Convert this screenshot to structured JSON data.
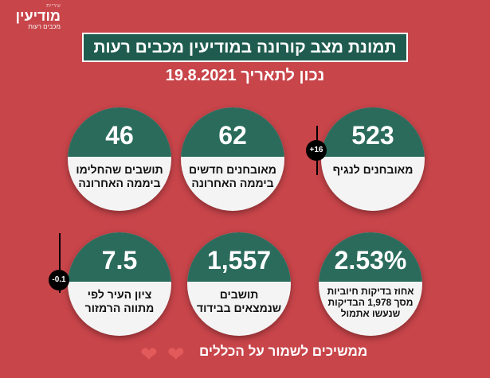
{
  "logo": {
    "small": "עיריית",
    "big": "מודיעין",
    "sub": "מכבים רעות"
  },
  "title": "תמונת מצב קורונה במודיעין מכבים רעות",
  "date": "נכון לתאריך 19.8.2021",
  "cards": [
    {
      "value": "46",
      "label": "תושבים שהחלימו ביממה האחרונה"
    },
    {
      "value": "62",
      "label": "מאובחנים חדשים ביממה האחרונה"
    },
    {
      "value": "523",
      "label": "מאובחנים לנגיף",
      "change": "+16"
    },
    {
      "value": "7.5",
      "label": "ציון העיר לפי מתווה הרמזור",
      "change": "-0.1"
    },
    {
      "value": "1,557",
      "label": "תושבים שנמצאים בבידוד"
    },
    {
      "value": "2.53%",
      "label": "אחוז בדיקות חיוביות מסך 1,978 הבדיקות שנעשו אתמול"
    }
  ],
  "footer": "ממשיכים לשמור על הכללים"
}
